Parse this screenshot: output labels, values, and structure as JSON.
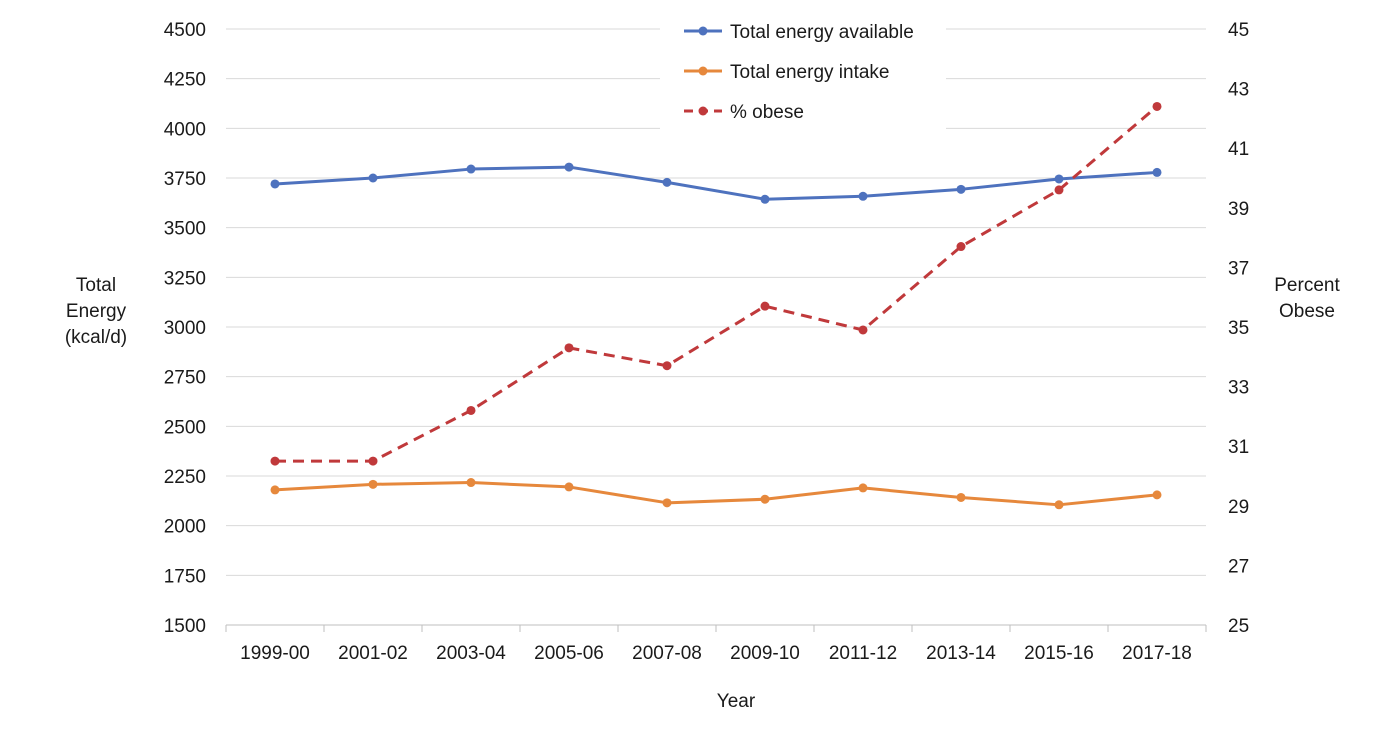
{
  "chart_data": {
    "type": "line",
    "categories": [
      "1999-00",
      "2001-02",
      "2003-04",
      "2005-06",
      "2007-08",
      "2009-10",
      "2011-12",
      "2013-14",
      "2015-16",
      "2017-18"
    ],
    "xlabel": "Year",
    "ylabel_left": [
      "Total",
      "Energy",
      "(kcal/d)"
    ],
    "ylabel_right": [
      "Percent",
      "Obese"
    ],
    "ylim_left": [
      1500,
      4500
    ],
    "yticks_left": [
      1500,
      1750,
      2000,
      2250,
      2500,
      2750,
      3000,
      3250,
      3500,
      3750,
      4000,
      4250,
      4500
    ],
    "ylim_right": [
      25,
      45
    ],
    "yticks_right": [
      25,
      27,
      29,
      31,
      33,
      35,
      37,
      39,
      41,
      43,
      45
    ],
    "grid": true,
    "legend_position": "top-center",
    "series": [
      {
        "name": "Total energy available",
        "axis": "left",
        "color": "#4e72be",
        "dash": "solid",
        "values": [
          3720,
          3750,
          3795,
          3805,
          3728,
          3643,
          3658,
          3693,
          3745,
          3778
        ]
      },
      {
        "name": "Total energy intake",
        "axis": "left",
        "color": "#e6883c",
        "dash": "solid",
        "values": [
          2180,
          2208,
          2217,
          2195,
          2115,
          2133,
          2190,
          2142,
          2105,
          2155
        ]
      },
      {
        "name": "% obese",
        "axis": "right",
        "color": "#c0393b",
        "dash": "dashed",
        "values": [
          30.5,
          30.5,
          32.2,
          34.3,
          33.7,
          35.7,
          34.9,
          37.7,
          39.6,
          42.4
        ]
      }
    ]
  }
}
